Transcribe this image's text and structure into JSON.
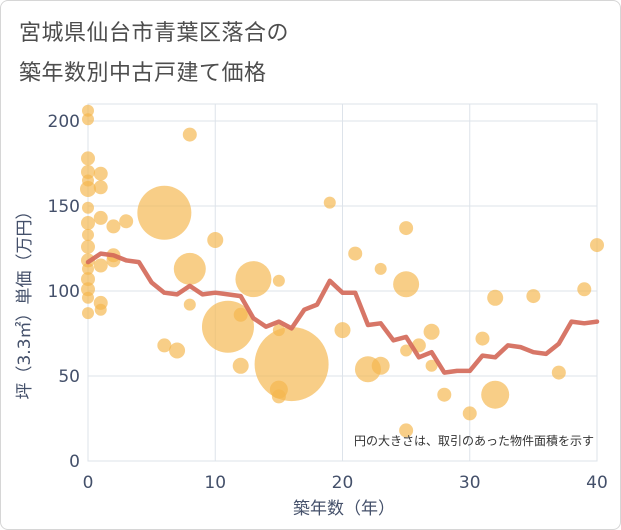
{
  "title_line1": "宮城県仙台市青葉区落合の",
  "title_line2": "築年数別中古戸建て価格",
  "note": "円の大きさは、取引のあった物件面積を示す",
  "colors": {
    "bubble": "#f5b74e",
    "line": "#d46a5a",
    "grid": "#dde3ea",
    "text": "#44506a"
  },
  "chart_data": {
    "type": "scatter",
    "xlabel": "築年数（年）",
    "ylabel": "坪（3.3㎡）単価（万円）",
    "xlim": [
      0,
      40
    ],
    "ylim": [
      0,
      210
    ],
    "xticks": [
      "0",
      "10",
      "20",
      "30",
      "40"
    ],
    "yticks": [
      "0",
      "50",
      "100",
      "150",
      "200"
    ],
    "grid": true,
    "bubbles": [
      {
        "x": 0,
        "y": 206,
        "s": 6
      },
      {
        "x": 0,
        "y": 201,
        "s": 6
      },
      {
        "x": 0,
        "y": 178,
        "s": 7
      },
      {
        "x": 0,
        "y": 170,
        "s": 7
      },
      {
        "x": 0,
        "y": 165,
        "s": 6
      },
      {
        "x": 0,
        "y": 160,
        "s": 8
      },
      {
        "x": 0,
        "y": 149,
        "s": 6
      },
      {
        "x": 0,
        "y": 140,
        "s": 7
      },
      {
        "x": 0,
        "y": 133,
        "s": 6
      },
      {
        "x": 0,
        "y": 126,
        "s": 7
      },
      {
        "x": 0,
        "y": 118,
        "s": 7
      },
      {
        "x": 0,
        "y": 113,
        "s": 6
      },
      {
        "x": 0,
        "y": 107,
        "s": 7
      },
      {
        "x": 0,
        "y": 101,
        "s": 7
      },
      {
        "x": 0,
        "y": 96,
        "s": 6
      },
      {
        "x": 0,
        "y": 87,
        "s": 6
      },
      {
        "x": 1,
        "y": 169,
        "s": 7
      },
      {
        "x": 1,
        "y": 161,
        "s": 7
      },
      {
        "x": 1,
        "y": 143,
        "s": 7
      },
      {
        "x": 1,
        "y": 115,
        "s": 7
      },
      {
        "x": 1,
        "y": 93,
        "s": 7
      },
      {
        "x": 1,
        "y": 89,
        "s": 6
      },
      {
        "x": 2,
        "y": 138,
        "s": 7
      },
      {
        "x": 2,
        "y": 121,
        "s": 7
      },
      {
        "x": 2,
        "y": 118,
        "s": 7
      },
      {
        "x": 3,
        "y": 141,
        "s": 7
      },
      {
        "x": 6,
        "y": 146,
        "s": 27
      },
      {
        "x": 6,
        "y": 68,
        "s": 7
      },
      {
        "x": 7,
        "y": 65,
        "s": 8
      },
      {
        "x": 8,
        "y": 192,
        "s": 7
      },
      {
        "x": 8,
        "y": 113,
        "s": 16
      },
      {
        "x": 8,
        "y": 92,
        "s": 6
      },
      {
        "x": 10,
        "y": 130,
        "s": 8
      },
      {
        "x": 11,
        "y": 79,
        "s": 26
      },
      {
        "x": 12,
        "y": 86,
        "s": 7
      },
      {
        "x": 12,
        "y": 56,
        "s": 8
      },
      {
        "x": 13,
        "y": 107,
        "s": 18
      },
      {
        "x": 15,
        "y": 106,
        "s": 6
      },
      {
        "x": 15,
        "y": 77,
        "s": 6
      },
      {
        "x": 15,
        "y": 42,
        "s": 9
      },
      {
        "x": 15,
        "y": 38,
        "s": 7
      },
      {
        "x": 16,
        "y": 57,
        "s": 37
      },
      {
        "x": 19,
        "y": 152,
        "s": 6
      },
      {
        "x": 20,
        "y": 77,
        "s": 8
      },
      {
        "x": 21,
        "y": 122,
        "s": 7
      },
      {
        "x": 22,
        "y": 54,
        "s": 13
      },
      {
        "x": 23,
        "y": 113,
        "s": 6
      },
      {
        "x": 23,
        "y": 56,
        "s": 9
      },
      {
        "x": 25,
        "y": 137,
        "s": 7
      },
      {
        "x": 25,
        "y": 104,
        "s": 13
      },
      {
        "x": 25,
        "y": 65,
        "s": 6
      },
      {
        "x": 25,
        "y": 18,
        "s": 7
      },
      {
        "x": 26,
        "y": 68,
        "s": 7
      },
      {
        "x": 27,
        "y": 76,
        "s": 8
      },
      {
        "x": 27,
        "y": 56,
        "s": 6
      },
      {
        "x": 28,
        "y": 39,
        "s": 7
      },
      {
        "x": 30,
        "y": 28,
        "s": 7
      },
      {
        "x": 31,
        "y": 72,
        "s": 7
      },
      {
        "x": 32,
        "y": 96,
        "s": 8
      },
      {
        "x": 32,
        "y": 39,
        "s": 14
      },
      {
        "x": 35,
        "y": 97,
        "s": 7
      },
      {
        "x": 37,
        "y": 52,
        "s": 7
      },
      {
        "x": 39,
        "y": 101,
        "s": 7
      },
      {
        "x": 40,
        "y": 127,
        "s": 7
      }
    ],
    "series": [
      {
        "x": [
          0,
          1,
          2,
          3,
          4,
          5,
          6,
          7,
          8,
          9,
          10,
          11,
          12,
          13,
          14,
          15,
          16,
          17,
          18,
          19,
          20,
          21,
          22,
          23,
          24,
          25,
          26,
          27,
          28,
          29,
          30,
          31,
          32,
          33,
          34,
          35,
          36,
          37,
          38,
          39,
          40
        ],
        "values": [
          117,
          122,
          121,
          118,
          117,
          105,
          99,
          98,
          103,
          98,
          99,
          98,
          97,
          84,
          79,
          82,
          78,
          89,
          92,
          106,
          99,
          99,
          80,
          81,
          71,
          73,
          61,
          64,
          52,
          53,
          53,
          62,
          61,
          68,
          67,
          64,
          63,
          69,
          82,
          81,
          82
        ]
      }
    ]
  }
}
